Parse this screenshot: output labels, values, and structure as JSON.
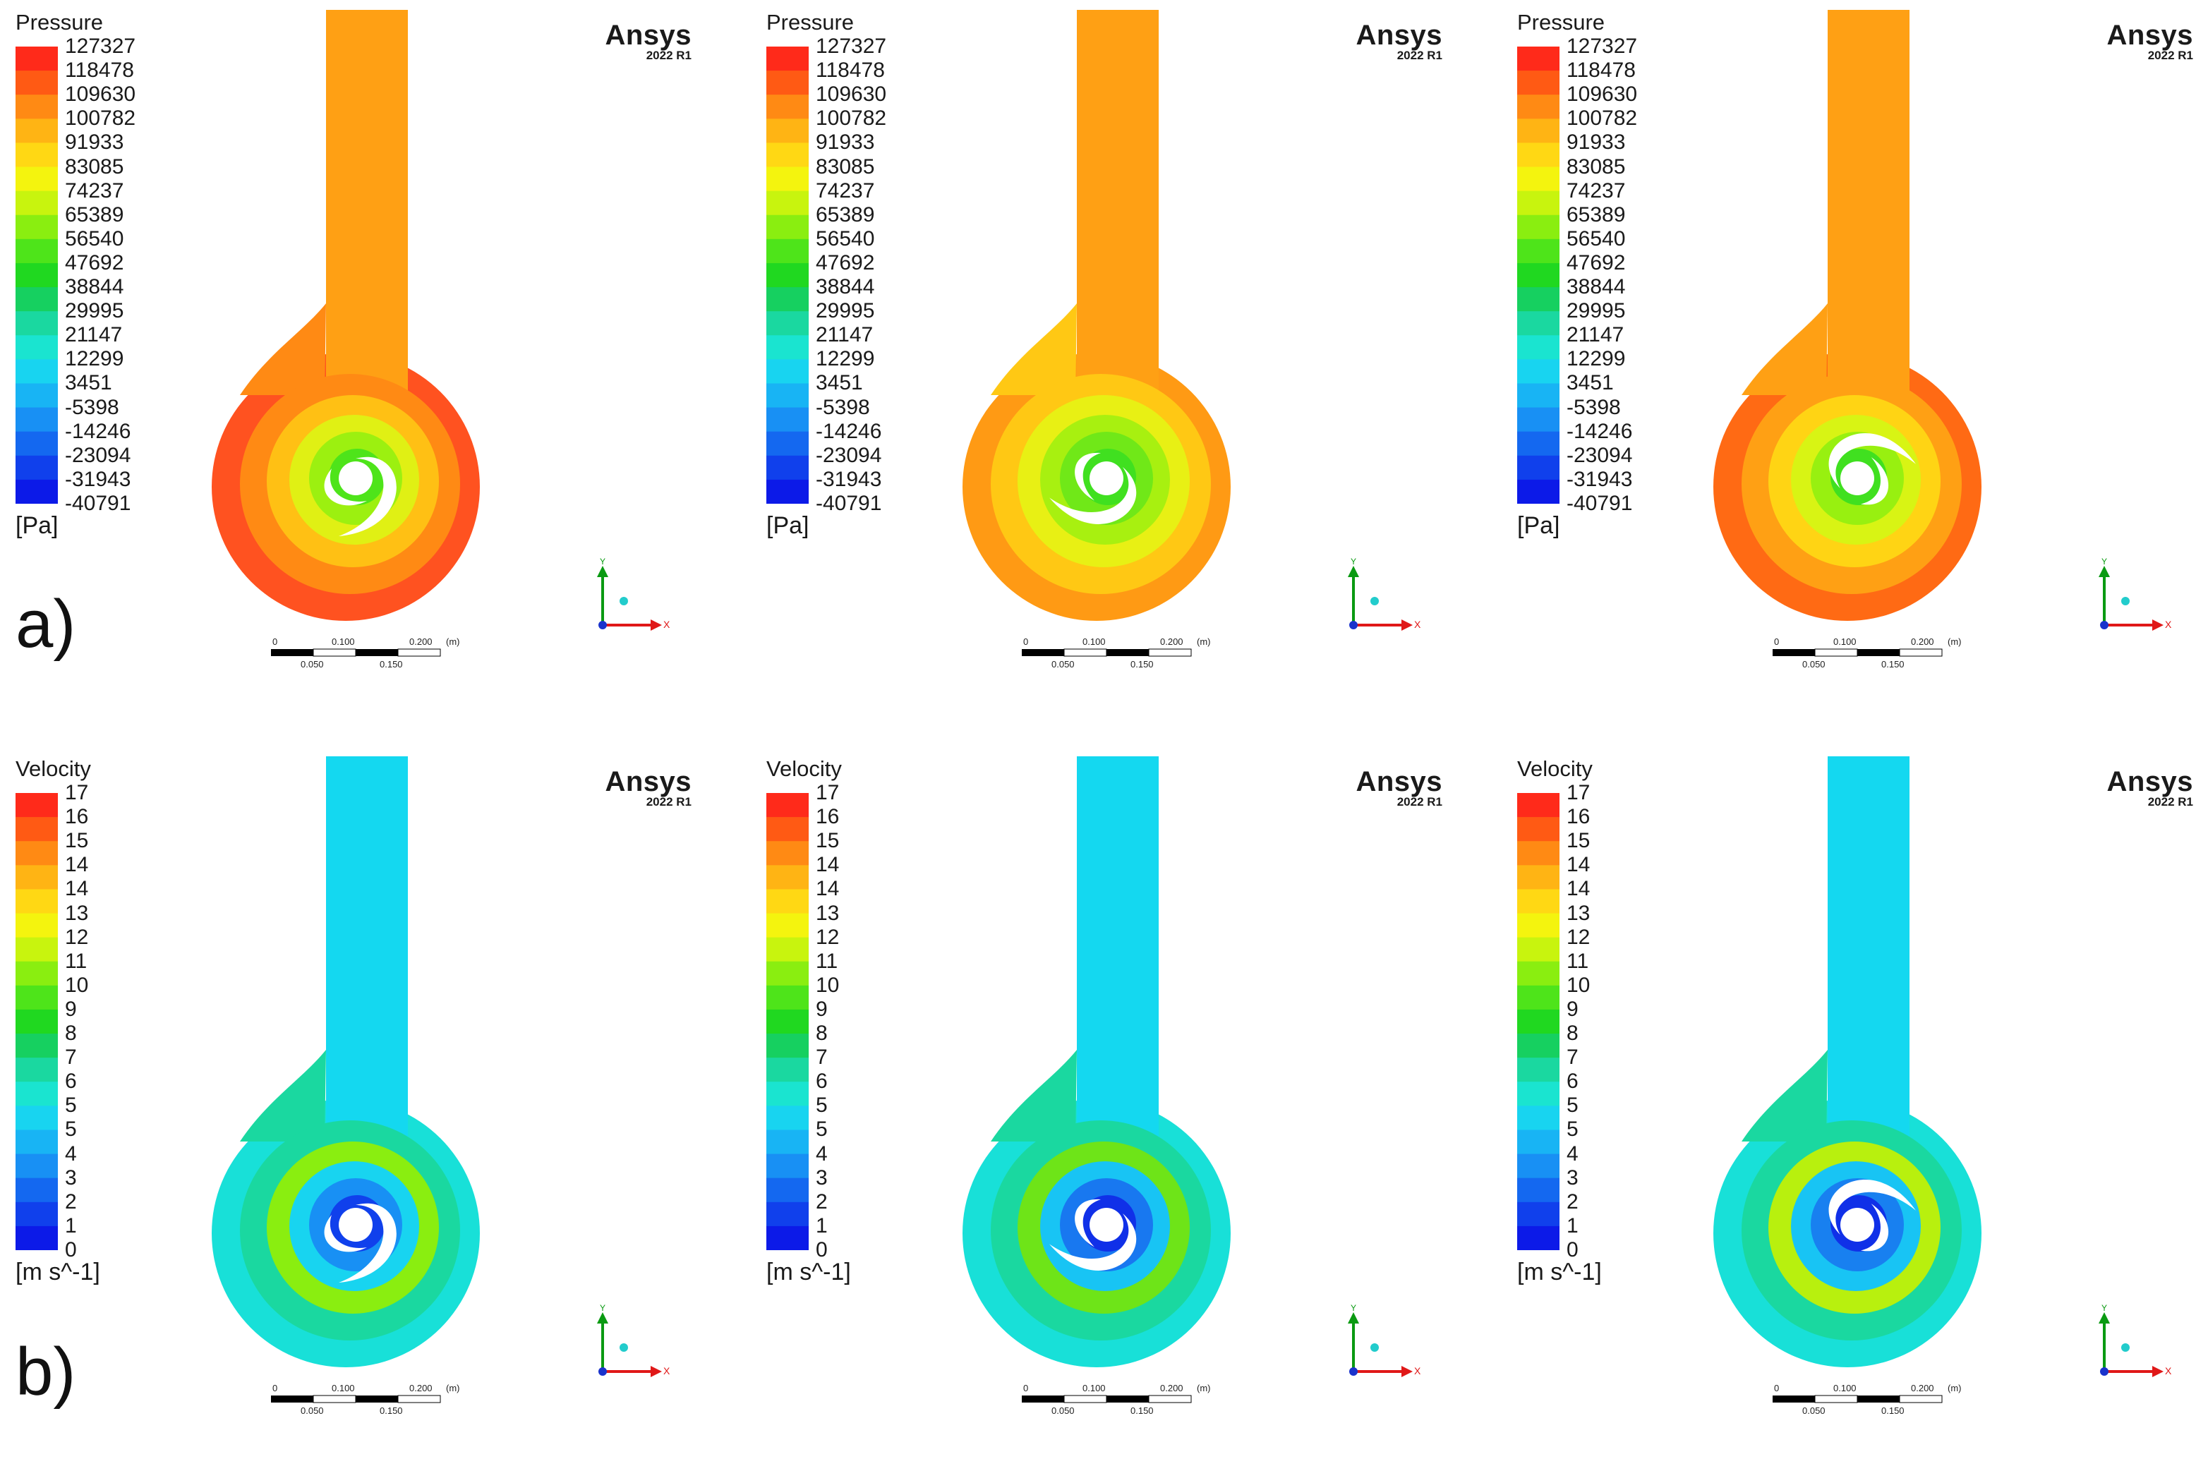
{
  "figure": {
    "row_labels": [
      "a)",
      "b)"
    ],
    "brand": {
      "name": "Ansys",
      "version": "2022 R1"
    },
    "scale_bar": {
      "tick0": "0",
      "tick1": "0.100",
      "tick2": "0.200",
      "unit": "(m)",
      "sub1": "0.050",
      "sub2": "0.150"
    },
    "axes": {
      "y": "Y",
      "x": "X"
    },
    "colors": {
      "accent_triad_y": "#0a9a12",
      "accent_triad_x": "#e01818",
      "accent_triad_z": "#1a33cc",
      "accent_triad_sphere": "#22cccc"
    }
  },
  "rows": [
    {
      "quantity": "Pressure",
      "unit": "[Pa]",
      "ticks": [
        "127327",
        "118478",
        "109630",
        "100782",
        "91933",
        "83085",
        "74237",
        "65389",
        "56540",
        "47692",
        "38844",
        "29995",
        "21147",
        "12299",
        "3451",
        "-5398",
        "-14246",
        "-23094",
        "-31943",
        "-40791"
      ],
      "palette": [
        "#ff2a1a",
        "#ff5a14",
        "#ff8a14",
        "#ffb414",
        "#ffd814",
        "#f4f40e",
        "#c8f40e",
        "#8aee10",
        "#4ee41a",
        "#20d820",
        "#16d060",
        "#1ad8a0",
        "#1ae4d0",
        "#18d4f0",
        "#18b4f4",
        "#1890f4",
        "#1468f0",
        "#1040ec",
        "#0c1ae8"
      ],
      "pumps": [
        {
          "pipe": "#ffa014",
          "outer": "#ff5220",
          "ring2": "#ff8a14",
          "ring3": "#ffc014",
          "ring4": "#e0f014",
          "core": "#4ee41a",
          "core2": "#9cf010"
        },
        {
          "pipe": "#ffa014",
          "outer": "#ff9a14",
          "ring2": "#ffc814",
          "ring3": "#e8f014",
          "ring4": "#a8f010",
          "core": "#40e020",
          "core2": "#70e818"
        },
        {
          "pipe": "#ffa014",
          "outer": "#ff6a14",
          "ring2": "#ffa014",
          "ring3": "#ffd414",
          "ring4": "#d8f414",
          "core": "#40e020",
          "core2": "#98f010"
        }
      ]
    },
    {
      "quantity": "Velocity",
      "unit": "[m s^-1]",
      "ticks": [
        "17",
        "16",
        "15",
        "14",
        "14",
        "13",
        "12",
        "11",
        "10",
        "9",
        "8",
        "7",
        "6",
        "5",
        "5",
        "4",
        "3",
        "2",
        "1",
        "0"
      ],
      "palette": [
        "#ff2a1a",
        "#ff5a14",
        "#ff8a14",
        "#ffb414",
        "#ffd814",
        "#f4f40e",
        "#c8f40e",
        "#8aee10",
        "#4ee41a",
        "#20d820",
        "#16d060",
        "#1ad8a0",
        "#1ae4d0",
        "#18d4f0",
        "#18b4f4",
        "#1890f4",
        "#1468f0",
        "#1040ec",
        "#0c1ae8"
      ],
      "pumps": [
        {
          "pipe": "#14d8f0",
          "outer": "#18e0d8",
          "ring2": "#1ad8a0",
          "ring3": "#8aee10",
          "ring4": "#18d4f0",
          "core": "#1040ec",
          "core2": "#1890f4"
        },
        {
          "pipe": "#14d8f0",
          "outer": "#18e0d8",
          "ring2": "#1ad8a0",
          "ring3": "#6ee418",
          "ring4": "#18c4f4",
          "core": "#1030e8",
          "core2": "#1878f0"
        },
        {
          "pipe": "#14d8f0",
          "outer": "#18e0d8",
          "ring2": "#1ad8a0",
          "ring3": "#b8f00e",
          "ring4": "#18c4f4",
          "core": "#1030e8",
          "core2": "#1880f0"
        }
      ]
    }
  ]
}
